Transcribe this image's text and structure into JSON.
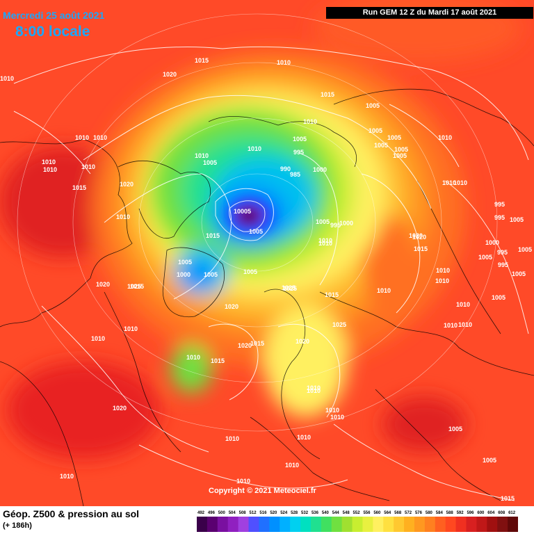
{
  "header": {
    "date": "Mercredi 25 août 2021",
    "time": "8:00 locale",
    "run_info": "Run GEM 12 Z du Mardi 17 août 2021"
  },
  "map": {
    "copyright": "Copyright © 2021 Meteociel.fr",
    "isobar_labels": [
      "1010",
      "1020",
      "1015",
      "1010",
      "1015",
      "1010",
      "1010",
      "1010",
      "1010",
      "1010",
      "1015",
      "1020",
      "1010",
      "1020",
      "1025",
      "1010",
      "1010",
      "1020",
      "1010",
      "1010",
      "1015",
      "1005",
      "1010",
      "1005",
      "1005",
      "990",
      "985",
      "1000",
      "995",
      "1005",
      "1010",
      "10005",
      "1005",
      "1015",
      "1005",
      "1000",
      "1005",
      "1015",
      "1020",
      "1025",
      "1025",
      "1020",
      "1010",
      "1010",
      "1015",
      "1020",
      "1010",
      "1010",
      "1010",
      "1010",
      "1010",
      "1010",
      "1005",
      "1005",
      "1005",
      "1005",
      "1005",
      "1005",
      "1010",
      "1010",
      "1010",
      "1020",
      "1015",
      "1010",
      "1010",
      "1010",
      "1010",
      "995",
      "995",
      "1005",
      "1000",
      "995",
      "1005",
      "995",
      "1005",
      "1005",
      "1005",
      "1005",
      "1010",
      "1005",
      "1015",
      "1010",
      "1010",
      "1020",
      "1025",
      "1010",
      "1010",
      "1015",
      "995",
      "1000"
    ]
  },
  "legend": {
    "title": "Géop. Z500 & pression au sol",
    "subtitle": "(+ 186h)",
    "scale_values": [
      "492",
      "496",
      "500",
      "504",
      "508",
      "512",
      "516",
      "520",
      "524",
      "528",
      "532",
      "536",
      "540",
      "544",
      "548",
      "552",
      "556",
      "560",
      "564",
      "568",
      "572",
      "576",
      "580",
      "584",
      "588",
      "592",
      "596",
      "600",
      "604",
      "608",
      "612"
    ],
    "scale_colors": [
      "#3a004a",
      "#5a0070",
      "#7a10a0",
      "#9020c0",
      "#a040e0",
      "#5050ff",
      "#2070ff",
      "#0090ff",
      "#00b0ff",
      "#00d0f0",
      "#00e0c0",
      "#20e090",
      "#40e060",
      "#70e040",
      "#a0e030",
      "#c8ee30",
      "#e8f040",
      "#fff060",
      "#ffe040",
      "#ffc830",
      "#ffb020",
      "#ff9820",
      "#ff8020",
      "#ff6020",
      "#ff4820",
      "#f03020",
      "#d82020",
      "#c01818",
      "#a01010",
      "#801010",
      "#600808"
    ]
  }
}
